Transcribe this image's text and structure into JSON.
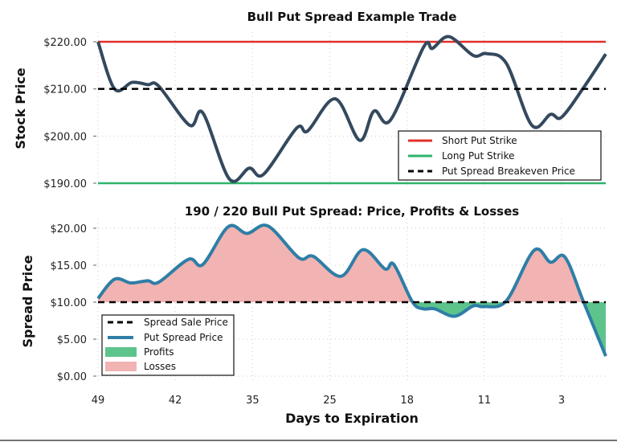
{
  "chart_data": [
    {
      "type": "line",
      "title": "Bull Put Spread Example Trade",
      "xlabel": "",
      "ylabel": "Stock Price",
      "xlim": [
        0,
        46
      ],
      "ylim": [
        190,
        220
      ],
      "xticks": [
        {
          "x": 0,
          "label": "49"
        },
        {
          "x": 7,
          "label": "42"
        },
        {
          "x": 14,
          "label": "35"
        },
        {
          "x": 21,
          "label": "25"
        },
        {
          "x": 28,
          "label": "18"
        },
        {
          "x": 35,
          "label": "11"
        },
        {
          "x": 42,
          "label": "3"
        }
      ],
      "yticks": [
        {
          "y": 220,
          "label": "$220.00"
        },
        {
          "y": 210,
          "label": "$210.00"
        },
        {
          "y": 200,
          "label": "$200.00"
        },
        {
          "y": 190,
          "label": "$190.00"
        }
      ],
      "grid": true,
      "legend_placement": "lower-right",
      "hlines": [
        {
          "name": "Short Put Strike",
          "y": 220,
          "color": "#e0302a",
          "style": "solid"
        },
        {
          "name": "Long Put Strike",
          "y": 190,
          "color": "#2fb36a",
          "style": "solid"
        },
        {
          "name": "Put Spread Breakeven Price",
          "y": 210,
          "color": "#000000",
          "style": "dashed"
        }
      ],
      "series": [
        {
          "color": "#34495e",
          "x": [
            0,
            1.5,
            3.1,
            4.5,
            5.5,
            8.3,
            9.5,
            11.9,
            13.7,
            15,
            18,
            19,
            21.5,
            23.7,
            25,
            26.5,
            29.5,
            30.3,
            31.8,
            34,
            35.2,
            37,
            39.3,
            41,
            42,
            44,
            46
          ],
          "values": [
            220,
            210,
            211.4,
            210.9,
            210.6,
            202.3,
            204.9,
            190.9,
            193.2,
            191.9,
            201.7,
            201.1,
            207.9,
            199.1,
            205.3,
            203.4,
            218.9,
            218.6,
            221.1,
            217.1,
            217.5,
            215.4,
            202.3,
            204.6,
            204,
            210.3,
            217.4
          ]
        }
      ]
    },
    {
      "type": "area",
      "title": "190 / 220 Bull Put Spread: Price, Profits & Losses",
      "xlabel": "Days to Expiration",
      "ylabel": "Spread Price",
      "xlim": [
        0,
        46
      ],
      "ylim": [
        0,
        20
      ],
      "xticks": [
        {
          "x": 0,
          "label": "49"
        },
        {
          "x": 7,
          "label": "42"
        },
        {
          "x": 14,
          "label": "35"
        },
        {
          "x": 21,
          "label": "25"
        },
        {
          "x": 28,
          "label": "18"
        },
        {
          "x": 35,
          "label": "11"
        },
        {
          "x": 42,
          "label": "3"
        }
      ],
      "yticks": [
        {
          "y": 20,
          "label": "$20.00"
        },
        {
          "y": 15,
          "label": "$15.00"
        },
        {
          "y": 10,
          "label": "$10.00"
        },
        {
          "y": 5,
          "label": "$5.00"
        },
        {
          "y": 0,
          "label": "$0.00"
        }
      ],
      "grid": true,
      "legend_placement": "lower-left",
      "sale_price": {
        "name": "Spread Sale Price",
        "y": 10,
        "color": "#000000"
      },
      "series": [
        {
          "name": "Put Spread Price",
          "color": "#2e7ea6",
          "x": [
            0,
            1.5,
            3,
            4.5,
            5.5,
            8.2,
            9.5,
            11.8,
            13.5,
            15.4,
            18.2,
            19.5,
            22,
            24,
            26,
            26.8,
            28.5,
            29.5,
            30.5,
            32.3,
            34,
            35,
            37,
            39.5,
            41,
            42.3,
            44,
            46
          ],
          "values": [
            10.5,
            13.1,
            12.6,
            12.9,
            12.7,
            15.8,
            15.1,
            20.2,
            19.3,
            20.3,
            16,
            16.2,
            13.5,
            17.1,
            14.5,
            15.1,
            10,
            9.1,
            9.1,
            8.1,
            9.5,
            9.4,
            10.2,
            17,
            15.4,
            16.1,
            10,
            2.7
          ]
        }
      ],
      "fills": [
        {
          "name": "Profits",
          "color": "#5dc48c"
        },
        {
          "name": "Losses",
          "color": "#f2b3b3"
        }
      ]
    }
  ]
}
